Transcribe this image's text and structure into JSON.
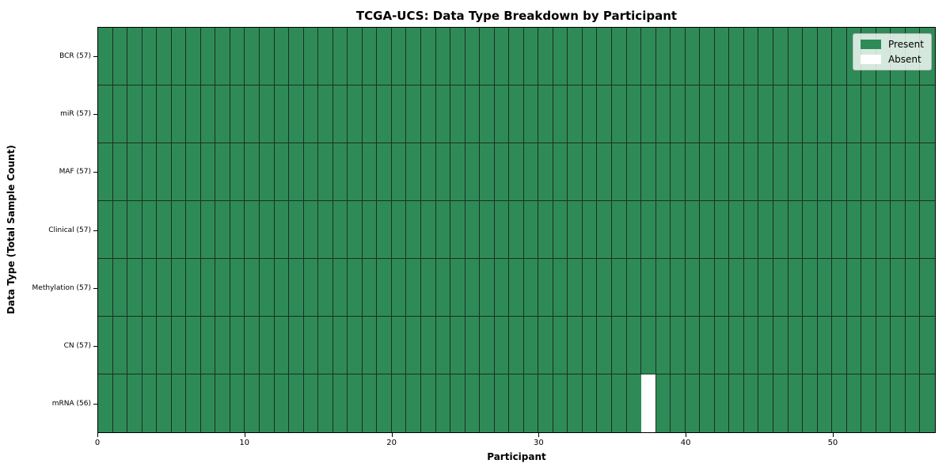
{
  "chart_data": {
    "type": "heatmap",
    "title": "TCGA-UCS: Data Type Breakdown by Participant",
    "xlabel": "Participant",
    "ylabel": "Data Type (Total Sample Count)",
    "n_participants": 57,
    "x_axis_range": [
      0,
      57
    ],
    "x_ticks": [
      0,
      10,
      20,
      30,
      40,
      50
    ],
    "grid_on": true,
    "rows": [
      {
        "label": "BCR (57)",
        "data_type": "BCR",
        "total_samples": 57,
        "absent_participants": []
      },
      {
        "label": "miR (57)",
        "data_type": "miR",
        "total_samples": 57,
        "absent_participants": []
      },
      {
        "label": "MAF (57)",
        "data_type": "MAF",
        "total_samples": 57,
        "absent_participants": []
      },
      {
        "label": "Clinical (57)",
        "data_type": "Clinical",
        "total_samples": 57,
        "absent_participants": []
      },
      {
        "label": "Methylation (57)",
        "data_type": "Methylation",
        "total_samples": 57,
        "absent_participants": []
      },
      {
        "label": "CN (57)",
        "data_type": "CN",
        "total_samples": 57,
        "absent_participants": []
      },
      {
        "label": "mRNA (56)",
        "data_type": "mRNA",
        "total_samples": 56,
        "absent_participants": [
          37
        ]
      }
    ],
    "legend": {
      "position": "upper right",
      "entries": [
        {
          "label": "Present",
          "color": "#2e8b57"
        },
        {
          "label": "Absent",
          "color": "#ffffff"
        }
      ]
    },
    "colors": {
      "present": "#2e8b57",
      "absent": "#ffffff",
      "cell_edge": "#1b2f22",
      "axis": "#000000"
    }
  }
}
